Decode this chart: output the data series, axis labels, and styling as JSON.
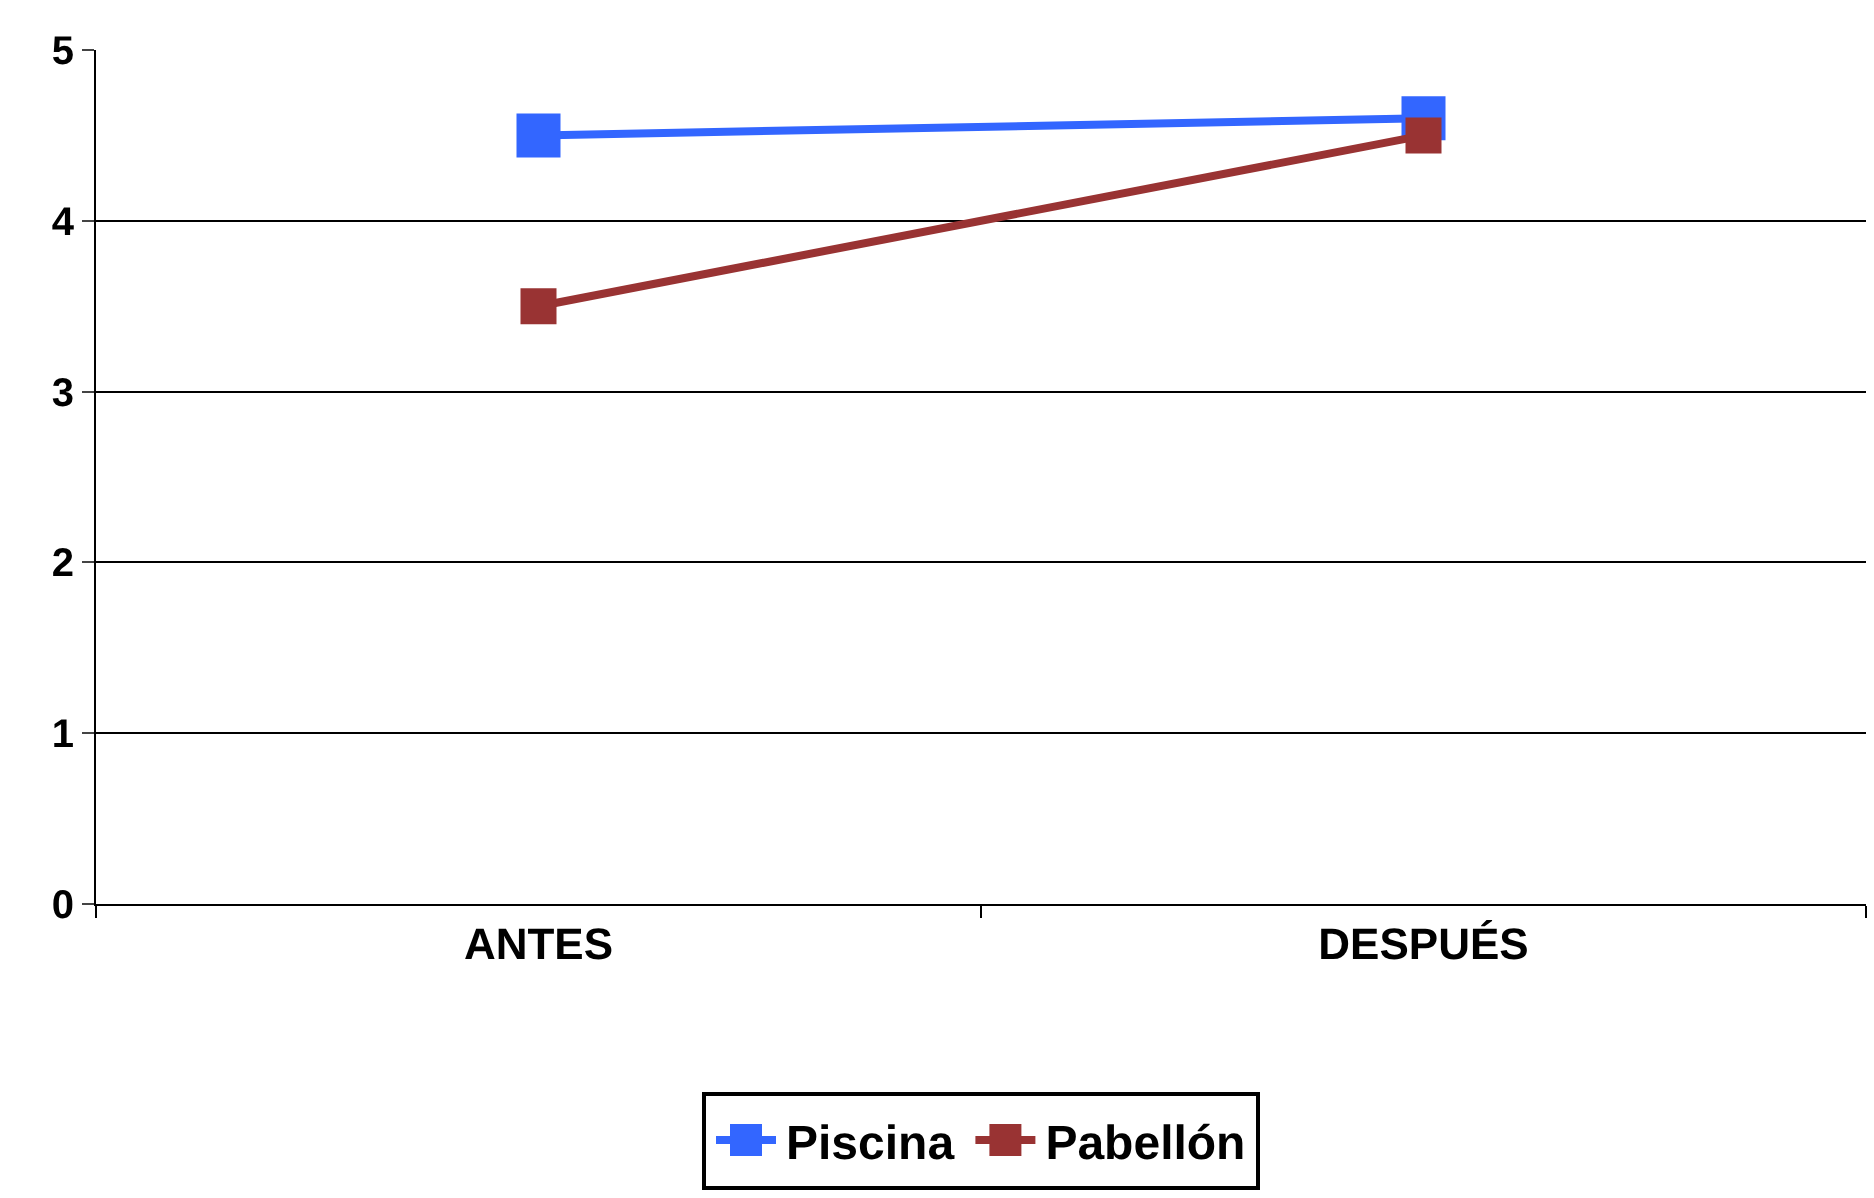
{
  "chart_data": {
    "type": "line",
    "categories": [
      "ANTES",
      "DESPUÉS"
    ],
    "series": [
      {
        "name": "Piscina",
        "color": "#3366ff",
        "values": [
          4.5,
          4.6
        ]
      },
      {
        "name": "Pabellón",
        "color": "#993333",
        "values": [
          3.5,
          4.5
        ]
      }
    ],
    "ylim": [
      0,
      5
    ],
    "yticks": [
      0,
      1,
      2,
      3,
      4,
      5
    ],
    "grid": "y",
    "legend": "bottom",
    "marker": "square",
    "line_style": "solid"
  }
}
